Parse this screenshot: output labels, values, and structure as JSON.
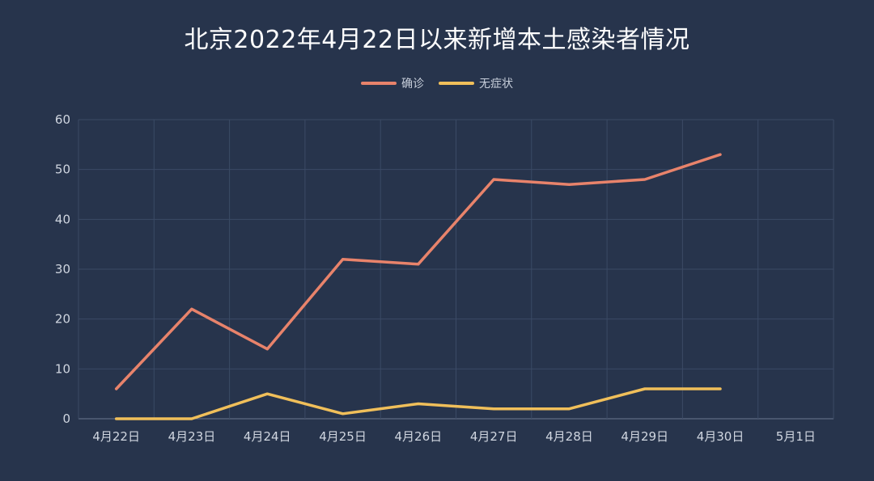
{
  "chart_data": {
    "type": "line",
    "title": "北京2022年4月22日以来新增本土感染者情况",
    "categories": [
      "4月22日",
      "4月23日",
      "4月24日",
      "4月25日",
      "4月26日",
      "4月27日",
      "4月28日",
      "4月29日",
      "4月30日",
      "5月1日"
    ],
    "y_ticks": [
      0,
      10,
      20,
      30,
      40,
      50,
      60
    ],
    "ylim": [
      0,
      60
    ],
    "grid": true,
    "legend_position": "top-center",
    "series": [
      {
        "name": "确诊",
        "color": "#e8836b",
        "values": [
          6,
          22,
          14,
          32,
          31,
          48,
          47,
          48,
          53,
          null
        ]
      },
      {
        "name": "无症状",
        "color": "#f0bf5a",
        "values": [
          0,
          0,
          5,
          1,
          3,
          2,
          2,
          6,
          6,
          null
        ]
      }
    ]
  }
}
